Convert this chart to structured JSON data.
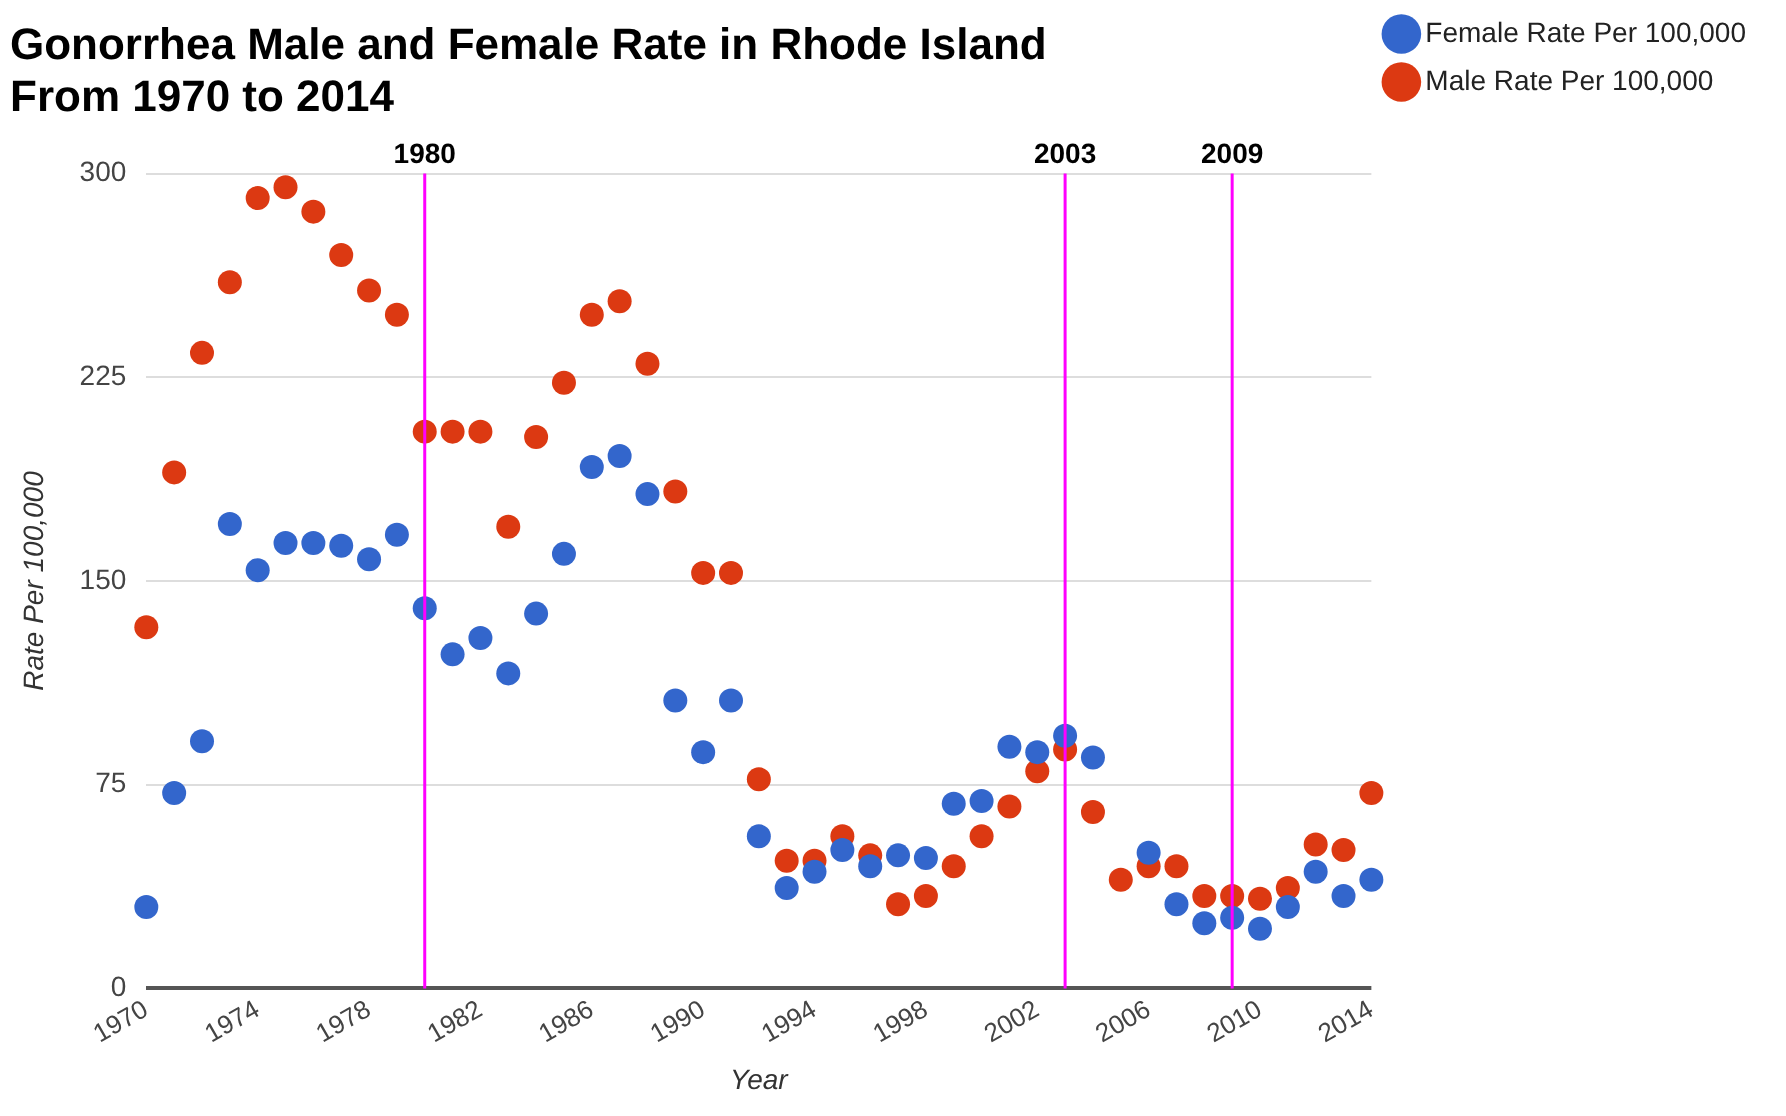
{
  "chart_data": {
    "type": "scatter",
    "title": "Gonorrhea Male and Female Rate in Rhode Island From 1970 to 2014",
    "xlabel": "Year",
    "ylabel": "Rate Per 100,000",
    "x": [
      1970,
      1971,
      1972,
      1973,
      1974,
      1975,
      1976,
      1977,
      1978,
      1979,
      1980,
      1981,
      1982,
      1983,
      1984,
      1985,
      1986,
      1987,
      1988,
      1989,
      1990,
      1991,
      1992,
      1993,
      1994,
      1995,
      1996,
      1997,
      1998,
      1999,
      2000,
      2001,
      2002,
      2003,
      2004,
      2005,
      2006,
      2007,
      2008,
      2009,
      2010,
      2011,
      2012,
      2013,
      2014
    ],
    "series": [
      {
        "name": "Female Rate Per 100,000",
        "color": "#3366cc",
        "values": [
          30,
          72,
          91,
          171,
          154,
          164,
          164,
          163,
          158,
          167,
          140,
          123,
          129,
          116,
          138,
          160,
          192,
          196,
          182,
          106,
          87,
          106,
          56,
          37,
          43,
          51,
          45,
          49,
          48,
          68,
          69,
          89,
          87,
          93,
          85,
          null,
          50,
          31,
          24,
          26,
          22,
          30,
          43,
          34,
          40
        ]
      },
      {
        "name": "Male Rate Per 100,000",
        "color": "#dc3912",
        "values": [
          133,
          190,
          234,
          260,
          291,
          295,
          286,
          270,
          257,
          248,
          205,
          205,
          205,
          170,
          203,
          223,
          248,
          253,
          230,
          183,
          153,
          153,
          77,
          47,
          47,
          56,
          49,
          31,
          34,
          45,
          56,
          67,
          80,
          88,
          65,
          40,
          45,
          45,
          34,
          34,
          33,
          37,
          53,
          51,
          72
        ]
      }
    ],
    "xlim": [
      1970,
      2014
    ],
    "xticks": [
      1970,
      1974,
      1978,
      1982,
      1986,
      1990,
      1994,
      1998,
      2002,
      2006,
      2010,
      2014
    ],
    "ylim": [
      0,
      300
    ],
    "yticks": [
      0,
      75,
      150,
      225,
      300
    ],
    "grid": "y",
    "legend": "right",
    "marker": "circle",
    "ref_lines": [
      {
        "axis": "x",
        "value": 1980,
        "label": "1980",
        "color": "#ff00ff"
      },
      {
        "axis": "x",
        "value": 2003,
        "label": "2003",
        "color": "#ff00ff"
      },
      {
        "axis": "x",
        "value": 2009,
        "label": "2009",
        "color": "#ff00ff"
      }
    ]
  }
}
